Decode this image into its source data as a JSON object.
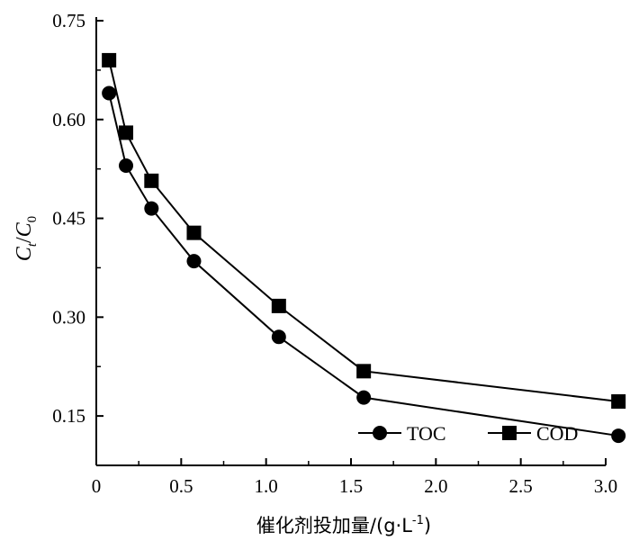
{
  "chart_data": {
    "type": "line",
    "title": "",
    "xlabel": "催化剂投加量/(g·L",
    "xlabel_sup": "-1",
    "xlabel_close": ")",
    "ylabel": {
      "main": "C",
      "main_sub": "t",
      "slash": "/",
      "denom": "C",
      "denom_sub": "0"
    },
    "xlim": [
      0,
      3.0
    ],
    "ylim": [
      0.075,
      0.75
    ],
    "x_ticks": [
      {
        "value": 0,
        "label": "0"
      },
      {
        "value": 0.5,
        "label": "0.5"
      },
      {
        "value": 1.0,
        "label": "1.0"
      },
      {
        "value": 1.5,
        "label": "1.5"
      },
      {
        "value": 2.0,
        "label": "2.0"
      },
      {
        "value": 2.5,
        "label": "2.5"
      },
      {
        "value": 3.0,
        "label": "3.0"
      }
    ],
    "y_ticks": [
      {
        "value": 0.15,
        "label": "0.15"
      },
      {
        "value": 0.3,
        "label": "0.30"
      },
      {
        "value": 0.45,
        "label": "0.45"
      },
      {
        "value": 0.6,
        "label": "0.60"
      },
      {
        "value": 0.75,
        "label": "0.75"
      }
    ],
    "grid": false,
    "legend_position": "bottom-right",
    "series": [
      {
        "name": "TOC",
        "marker": "circle",
        "color": "#000000",
        "x": [
          0.075,
          0.175,
          0.325,
          0.575,
          1.075,
          1.575,
          3.075
        ],
        "y": [
          0.64,
          0.53,
          0.465,
          0.385,
          0.27,
          0.178,
          0.12
        ]
      },
      {
        "name": "COD",
        "marker": "square",
        "color": "#000000",
        "x": [
          0.075,
          0.175,
          0.325,
          0.575,
          1.075,
          1.575,
          3.075
        ],
        "y": [
          0.69,
          0.58,
          0.507,
          0.428,
          0.317,
          0.218,
          0.172
        ]
      }
    ]
  }
}
